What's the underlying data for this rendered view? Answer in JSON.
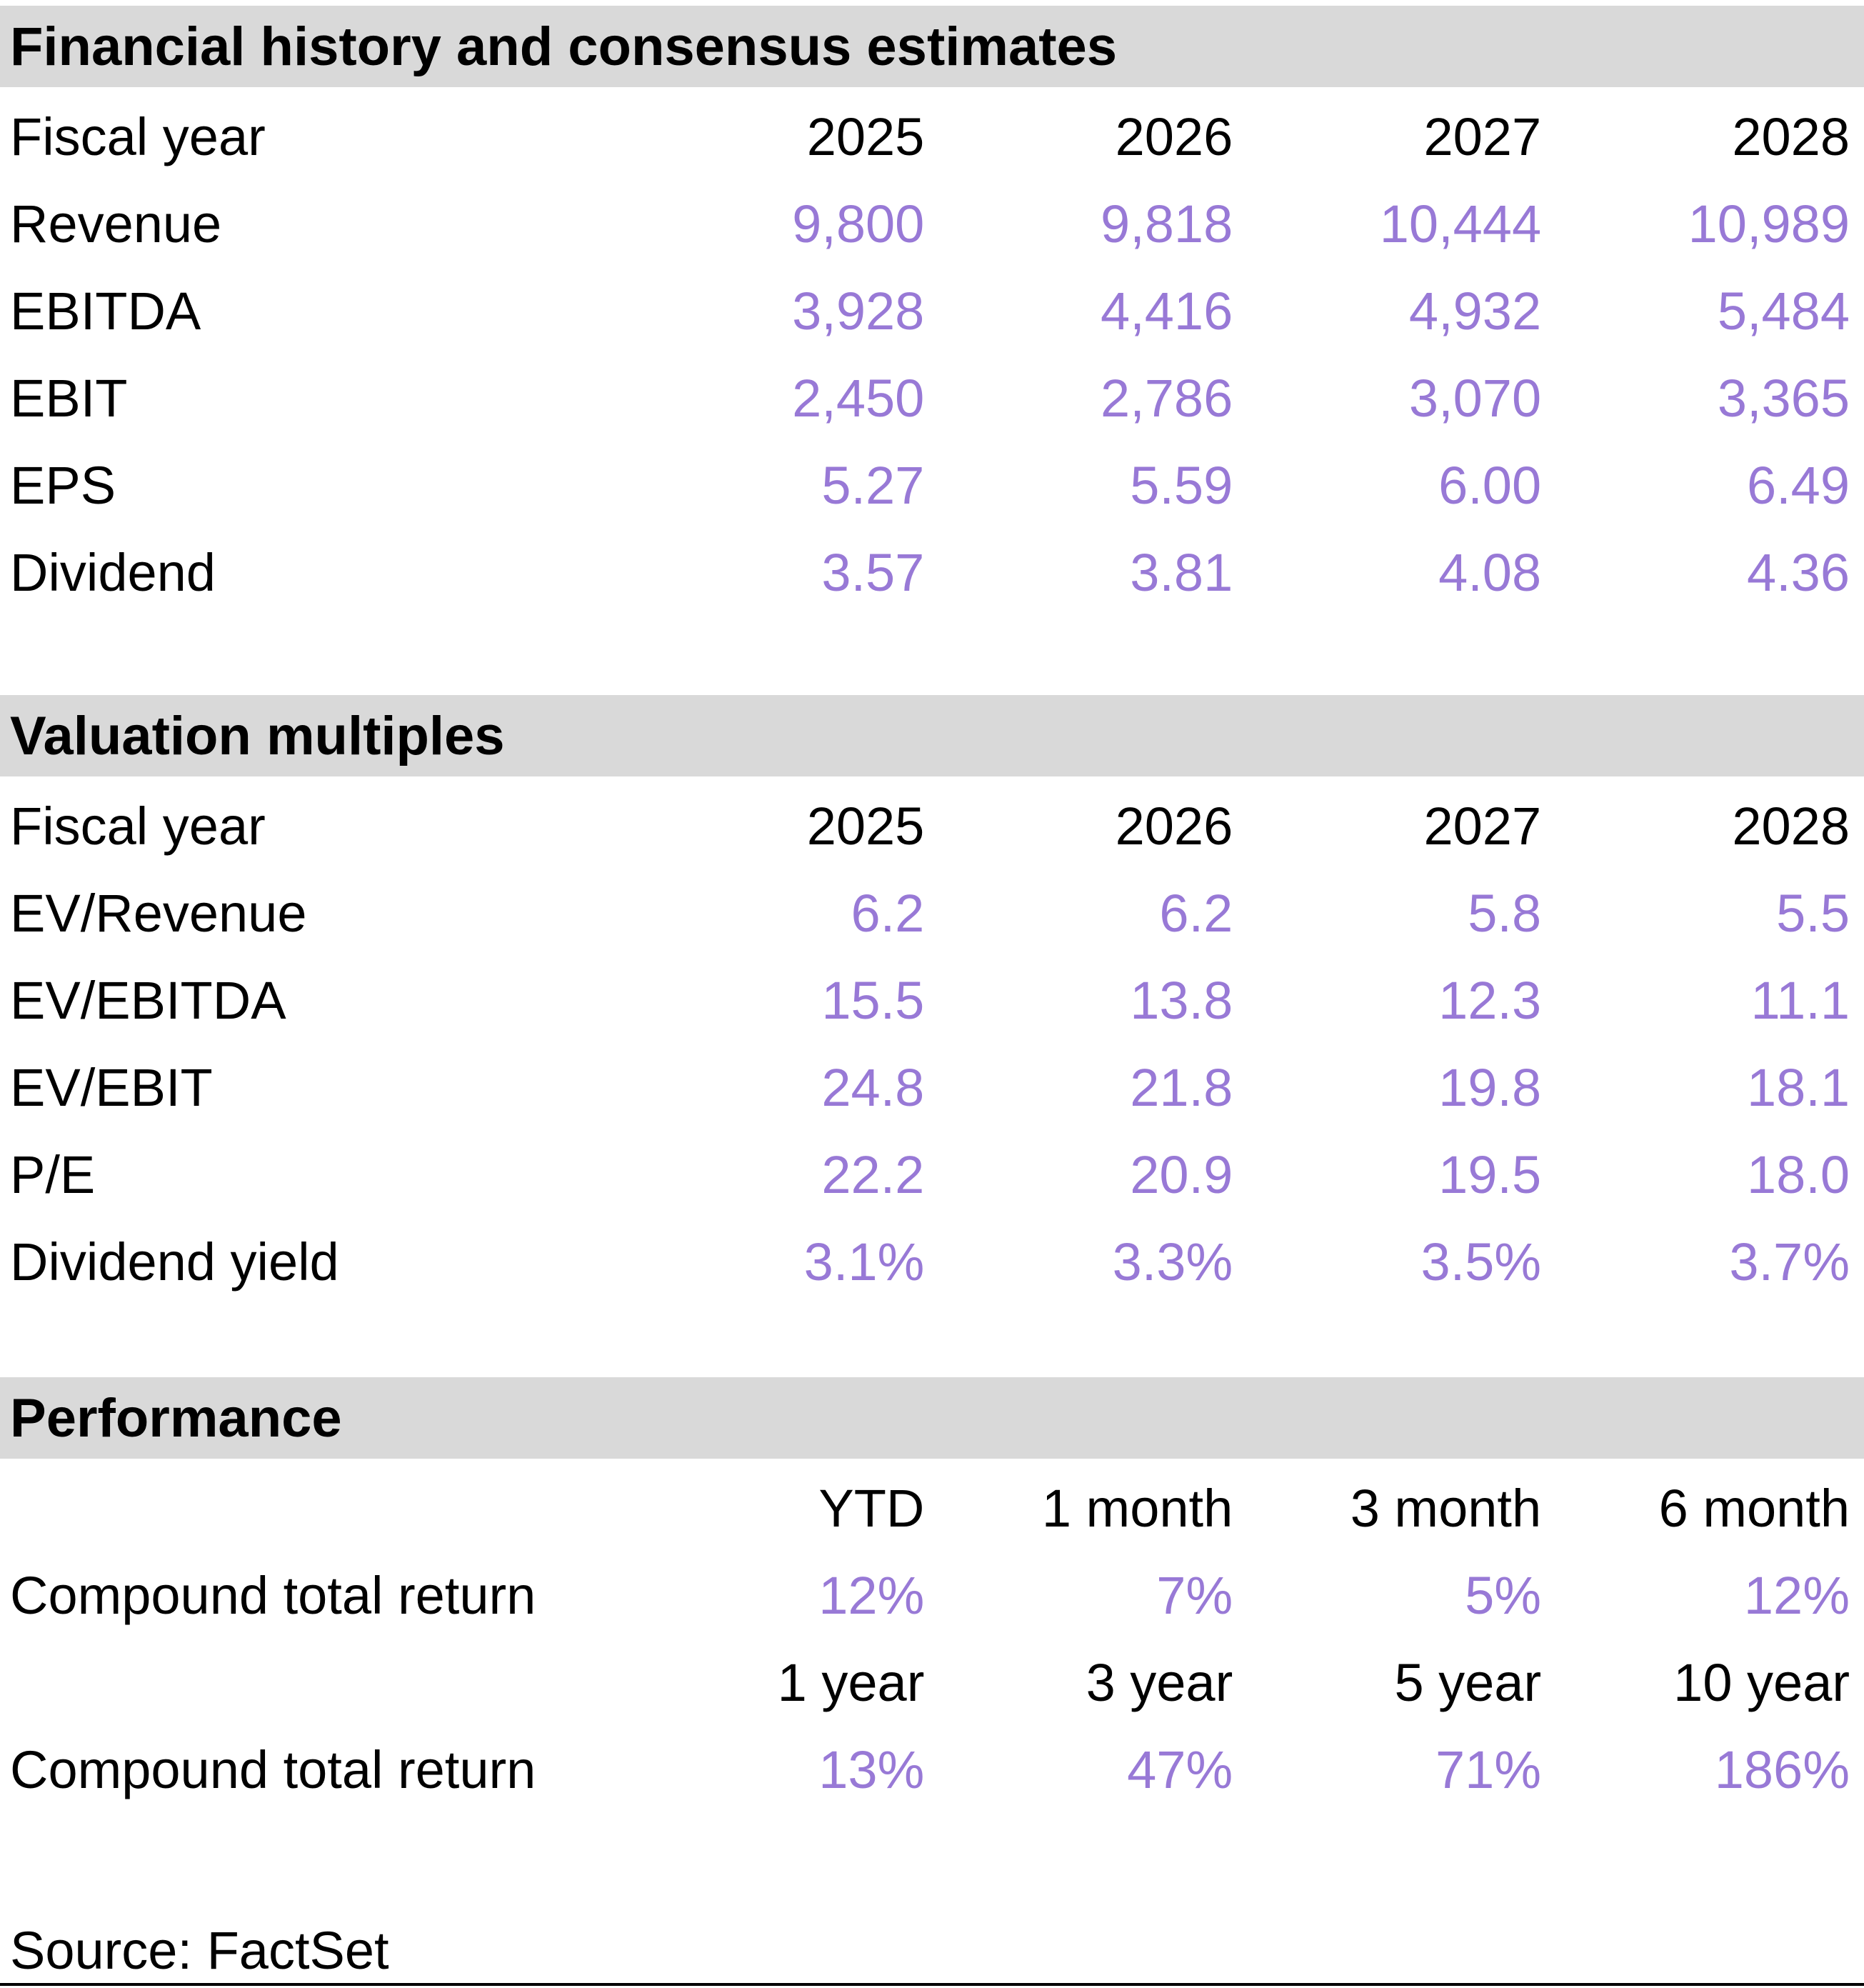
{
  "colors": {
    "value_text": "#9879D6",
    "section_header_bg": "#D9D9D9",
    "text": "#000000",
    "background": "#FFFFFF"
  },
  "sections": [
    {
      "title": "Financial history and consensus estimates",
      "header_row": {
        "label": "Fiscal year",
        "cols": [
          "2025",
          "2026",
          "2027",
          "2028"
        ]
      },
      "rows": [
        {
          "label": "Revenue",
          "values": [
            "9,800",
            "9,818",
            "10,444",
            "10,989"
          ]
        },
        {
          "label": "EBITDA",
          "values": [
            "3,928",
            "4,416",
            "4,932",
            "5,484"
          ]
        },
        {
          "label": "EBIT",
          "values": [
            "2,450",
            "2,786",
            "3,070",
            "3,365"
          ]
        },
        {
          "label": "EPS",
          "values": [
            "5.27",
            "5.59",
            "6.00",
            "6.49"
          ]
        },
        {
          "label": "Dividend",
          "values": [
            "3.57",
            "3.81",
            "4.08",
            "4.36"
          ]
        }
      ]
    },
    {
      "title": "Valuation multiples",
      "header_row": {
        "label": "Fiscal year",
        "cols": [
          "2025",
          "2026",
          "2027",
          "2028"
        ]
      },
      "rows": [
        {
          "label": "EV/Revenue",
          "values": [
            "6.2",
            "6.2",
            "5.8",
            "5.5"
          ]
        },
        {
          "label": "EV/EBITDA",
          "values": [
            "15.5",
            "13.8",
            "12.3",
            "11.1"
          ]
        },
        {
          "label": "EV/EBIT",
          "values": [
            "24.8",
            "21.8",
            "19.8",
            "18.1"
          ]
        },
        {
          "label": "P/E",
          "values": [
            "22.2",
            "20.9",
            "19.5",
            "18.0"
          ]
        },
        {
          "label": "Dividend yield",
          "values": [
            "3.1%",
            "3.3%",
            "3.5%",
            "3.7%"
          ]
        }
      ]
    },
    {
      "title": "Performance",
      "blocks": [
        {
          "header_cols": [
            "YTD",
            "1 month",
            "3 month",
            "6 month"
          ],
          "row": {
            "label": "Compound total return",
            "values": [
              "12%",
              "7%",
              "5%",
              "12%"
            ]
          }
        },
        {
          "header_cols": [
            "1 year",
            "3 year",
            "5 year",
            "10 year"
          ],
          "row": {
            "label": "Compound total return",
            "values": [
              "13%",
              "47%",
              "71%",
              "186%"
            ]
          }
        }
      ]
    }
  ],
  "footer": {
    "source": "Source: FactSet"
  }
}
